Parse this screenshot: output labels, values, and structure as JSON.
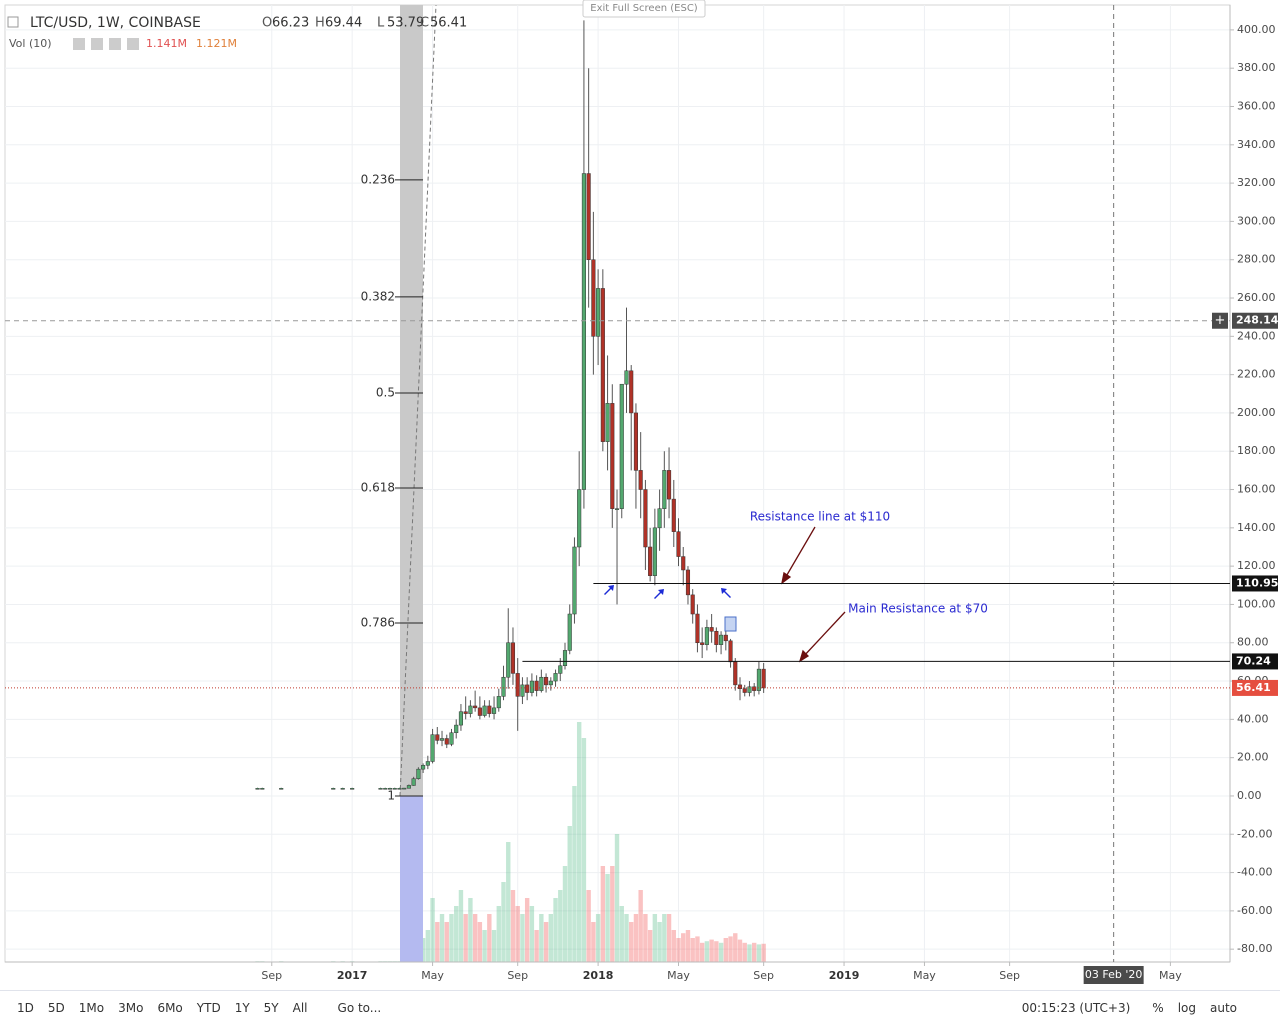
{
  "chart_data": {
    "type": "candlestick",
    "title": "LTC/USD, 1W, COINBASE",
    "ohlc": [
      {
        "label": "O",
        "value": 66.23
      },
      {
        "label": "H",
        "value": 69.44
      },
      {
        "label": "L",
        "value": 53.79
      },
      {
        "label": "C",
        "value": 56.41
      }
    ],
    "volume_legend": {
      "name": "Vol (10)",
      "values": [
        "1.141M",
        "1.121M"
      ]
    },
    "exit_button": "Exit Full Screen (ESC)",
    "up_color": "#53a86f",
    "down_color": "#b03228",
    "x": [
      32,
      33,
      37,
      48,
      50,
      52,
      58,
      59,
      60,
      61,
      62,
      63,
      64,
      65,
      66,
      67,
      68,
      69,
      70,
      71,
      72,
      73,
      74,
      75,
      76,
      77,
      78,
      79,
      80,
      81,
      82,
      83,
      84,
      85,
      86,
      87,
      88,
      89,
      90,
      91,
      92,
      93,
      94,
      95,
      96,
      97,
      98,
      99,
      100,
      101,
      102,
      103,
      104,
      105,
      106,
      107,
      108,
      109,
      110,
      111,
      112,
      113,
      114,
      115,
      116,
      117,
      118,
      119,
      120,
      121,
      122,
      123,
      124,
      125,
      126,
      127,
      128,
      129,
      130,
      131,
      132,
      133,
      134,
      135,
      136,
      137,
      138,
      139
    ],
    "open": [
      4,
      4,
      4,
      4,
      4,
      4,
      4,
      4,
      4,
      4,
      4,
      4,
      4,
      5.5,
      9,
      14,
      16,
      18,
      32,
      29,
      30,
      27,
      33,
      37,
      44,
      43,
      47,
      46,
      42,
      47,
      43,
      46,
      52,
      62,
      80,
      64,
      52,
      58,
      54,
      60,
      55,
      62,
      58,
      60,
      64,
      68,
      76,
      95,
      130,
      160,
      325,
      280,
      240,
      265,
      185,
      205,
      150,
      150,
      215,
      222,
      200,
      170,
      160,
      130,
      115,
      140,
      150,
      170,
      155,
      138,
      125,
      118,
      105,
      95,
      80,
      79,
      88,
      86,
      79,
      84,
      81,
      70,
      58,
      56,
      54,
      57,
      55,
      66.23
    ],
    "high": [
      4.3,
      4.3,
      4.3,
      4.3,
      4.3,
      4.3,
      4.3,
      4.3,
      4.3,
      4.3,
      4.3,
      4.2,
      6,
      10,
      15,
      17,
      21,
      35,
      36,
      34,
      32,
      35,
      40,
      48,
      52,
      50,
      55,
      52,
      50,
      50,
      52,
      56,
      68,
      98,
      88,
      72,
      62,
      62,
      64,
      63,
      66,
      64,
      62,
      66,
      72,
      80,
      100,
      135,
      180,
      405,
      380,
      305,
      275,
      275,
      230,
      215,
      160,
      215,
      255,
      225,
      205,
      190,
      165,
      140,
      150,
      160,
      180,
      182,
      165,
      145,
      130,
      120,
      108,
      100,
      88,
      92,
      95,
      88,
      86,
      86,
      82,
      72,
      62,
      58,
      60,
      59,
      70,
      69.44
    ],
    "low": [
      3.8,
      3.8,
      3.8,
      3.8,
      3.8,
      3.8,
      3.8,
      3.8,
      3.8,
      3.8,
      3.8,
      3.9,
      3.9,
      5.3,
      8.5,
      12,
      14,
      17,
      27,
      26,
      25,
      26,
      30,
      34,
      40,
      41,
      44,
      40,
      41,
      41,
      40,
      44,
      50,
      56,
      58,
      34,
      48,
      50,
      52,
      52,
      54,
      54,
      55,
      57,
      60,
      66,
      74,
      90,
      120,
      150,
      255,
      220,
      225,
      180,
      170,
      140,
      100,
      145,
      200,
      170,
      150,
      145,
      118,
      112,
      110,
      128,
      140,
      145,
      130,
      120,
      110,
      100,
      90,
      75,
      72,
      76,
      80,
      75,
      74,
      76,
      67,
      55,
      50,
      52,
      52,
      52,
      53,
      53.79
    ],
    "close": [
      4,
      4,
      4,
      4,
      4,
      4,
      4,
      4,
      4,
      4,
      4,
      4.1,
      5.5,
      9,
      14,
      16,
      18,
      32,
      29,
      30,
      27,
      33,
      37,
      44,
      43,
      47,
      46,
      42,
      47,
      43,
      46,
      52,
      62,
      80,
      64,
      52,
      58,
      54,
      60,
      55,
      62,
      58,
      60,
      64,
      68,
      76,
      95,
      130,
      160,
      325,
      280,
      240,
      265,
      185,
      205,
      150,
      150,
      215,
      222,
      200,
      170,
      160,
      130,
      115,
      140,
      150,
      170,
      155,
      138,
      125,
      118,
      105,
      95,
      80,
      79,
      88,
      86,
      79,
      84,
      81,
      70,
      58,
      56,
      54,
      57,
      55,
      66.23,
      56.41
    ],
    "volume": [
      0.05,
      0.05,
      0.05,
      0.05,
      0.05,
      0.05,
      0.05,
      0.05,
      0.05,
      0.05,
      0.05,
      0.1,
      0.3,
      0.8,
      1.2,
      1.5,
      2,
      4,
      2.5,
      3,
      2.5,
      3,
      3.5,
      4.5,
      3,
      4,
      3,
      2.5,
      2,
      3,
      2,
      3.5,
      5,
      7.5,
      4.5,
      3.5,
      3,
      4,
      3.5,
      2,
      3,
      2.5,
      3,
      4,
      4.5,
      6,
      8.5,
      11,
      15,
      14,
      4.5,
      2.5,
      3,
      6,
      5.5,
      6,
      8,
      3.5,
      3,
      2.5,
      3,
      4.5,
      3,
      2,
      3,
      2.5,
      3,
      3,
      2,
      1.5,
      1.8,
      2,
      1.5,
      1.6,
      1.2,
      1.3,
      1.4,
      1.3,
      1.2,
      1.5,
      1.6,
      1.8,
      1.4,
      1.2,
      1.1,
      1.2,
      1.1,
      1.141
    ],
    "xlim": [
      -21.4,
      237.6
    ],
    "xticks": [
      {
        "value": 35,
        "label": "Sep"
      },
      {
        "value": 52,
        "label": "2017"
      },
      {
        "value": 69,
        "label": "May"
      },
      {
        "value": 87,
        "label": "Sep"
      },
      {
        "value": 104,
        "label": "2018"
      },
      {
        "value": 121,
        "label": "May"
      },
      {
        "value": 139,
        "label": "Sep"
      },
      {
        "value": 156,
        "label": "2019"
      },
      {
        "value": 173,
        "label": "May"
      },
      {
        "value": 191,
        "label": "Sep"
      },
      {
        "value": 225,
        "label": "May"
      }
    ],
    "ylim": [
      -86.7,
      413
    ],
    "yticks": [
      {
        "value": 400,
        "label": "400.00"
      },
      {
        "value": 380,
        "label": "380.00"
      },
      {
        "value": 360,
        "label": "360.00"
      },
      {
        "value": 340,
        "label": "340.00"
      },
      {
        "value": 320,
        "label": "320.00"
      },
      {
        "value": 300,
        "label": "300.00"
      },
      {
        "value": 280,
        "label": "280.00"
      },
      {
        "value": 260,
        "label": "260.00"
      },
      {
        "value": 240,
        "label": "240.00"
      },
      {
        "value": 220,
        "label": "220.00"
      },
      {
        "value": 200,
        "label": "200.00"
      },
      {
        "value": 180,
        "label": "180.00"
      },
      {
        "value": 160,
        "label": "160.00"
      },
      {
        "value": 140,
        "label": "140.00"
      },
      {
        "value": 120,
        "label": "120.00"
      },
      {
        "value": 100,
        "label": "100.00"
      },
      {
        "value": 80,
        "label": "80.00"
      },
      {
        "value": 60,
        "label": "60.00"
      },
      {
        "value": 40,
        "label": "40.00"
      },
      {
        "value": 20,
        "label": "20.00"
      },
      {
        "value": 0,
        "label": "0.00"
      },
      {
        "value": -20,
        "label": "-20.00"
      },
      {
        "value": -40,
        "label": "-40.00"
      },
      {
        "value": -60,
        "label": "-60.00"
      },
      {
        "value": -80,
        "label": "-80.00"
      }
    ],
    "grid": true,
    "fib_levels": [
      {
        "label": "0.236",
        "value": 321.7
      },
      {
        "label": "0.382",
        "value": 260.6
      },
      {
        "label": "0.5",
        "value": 210.4
      },
      {
        "label": "0.618",
        "value": 160.8
      },
      {
        "label": "0.786",
        "value": 90.3
      },
      {
        "label": "1",
        "value": 0
      }
    ],
    "price_lines": [
      {
        "value": 110.95,
        "from_x": 103
      },
      {
        "value": 70.24,
        "from_x": 88
      }
    ],
    "last_price": 56.41,
    "crosshair": {
      "x": {
        "value": 213,
        "label": "03 Feb '20"
      },
      "y": 248.14
    },
    "annotations": [
      "Resistance line at $110",
      "Main Resistance at $70"
    ]
  },
  "toolbar": {
    "ranges": [
      "1D",
      "5D",
      "1Mo",
      "3Mo",
      "6Mo",
      "YTD",
      "1Y",
      "5Y",
      "All"
    ],
    "goto": "Go to...",
    "clock": "00:15:23 (UTC+3)",
    "options": [
      "%",
      "log",
      "auto"
    ]
  }
}
